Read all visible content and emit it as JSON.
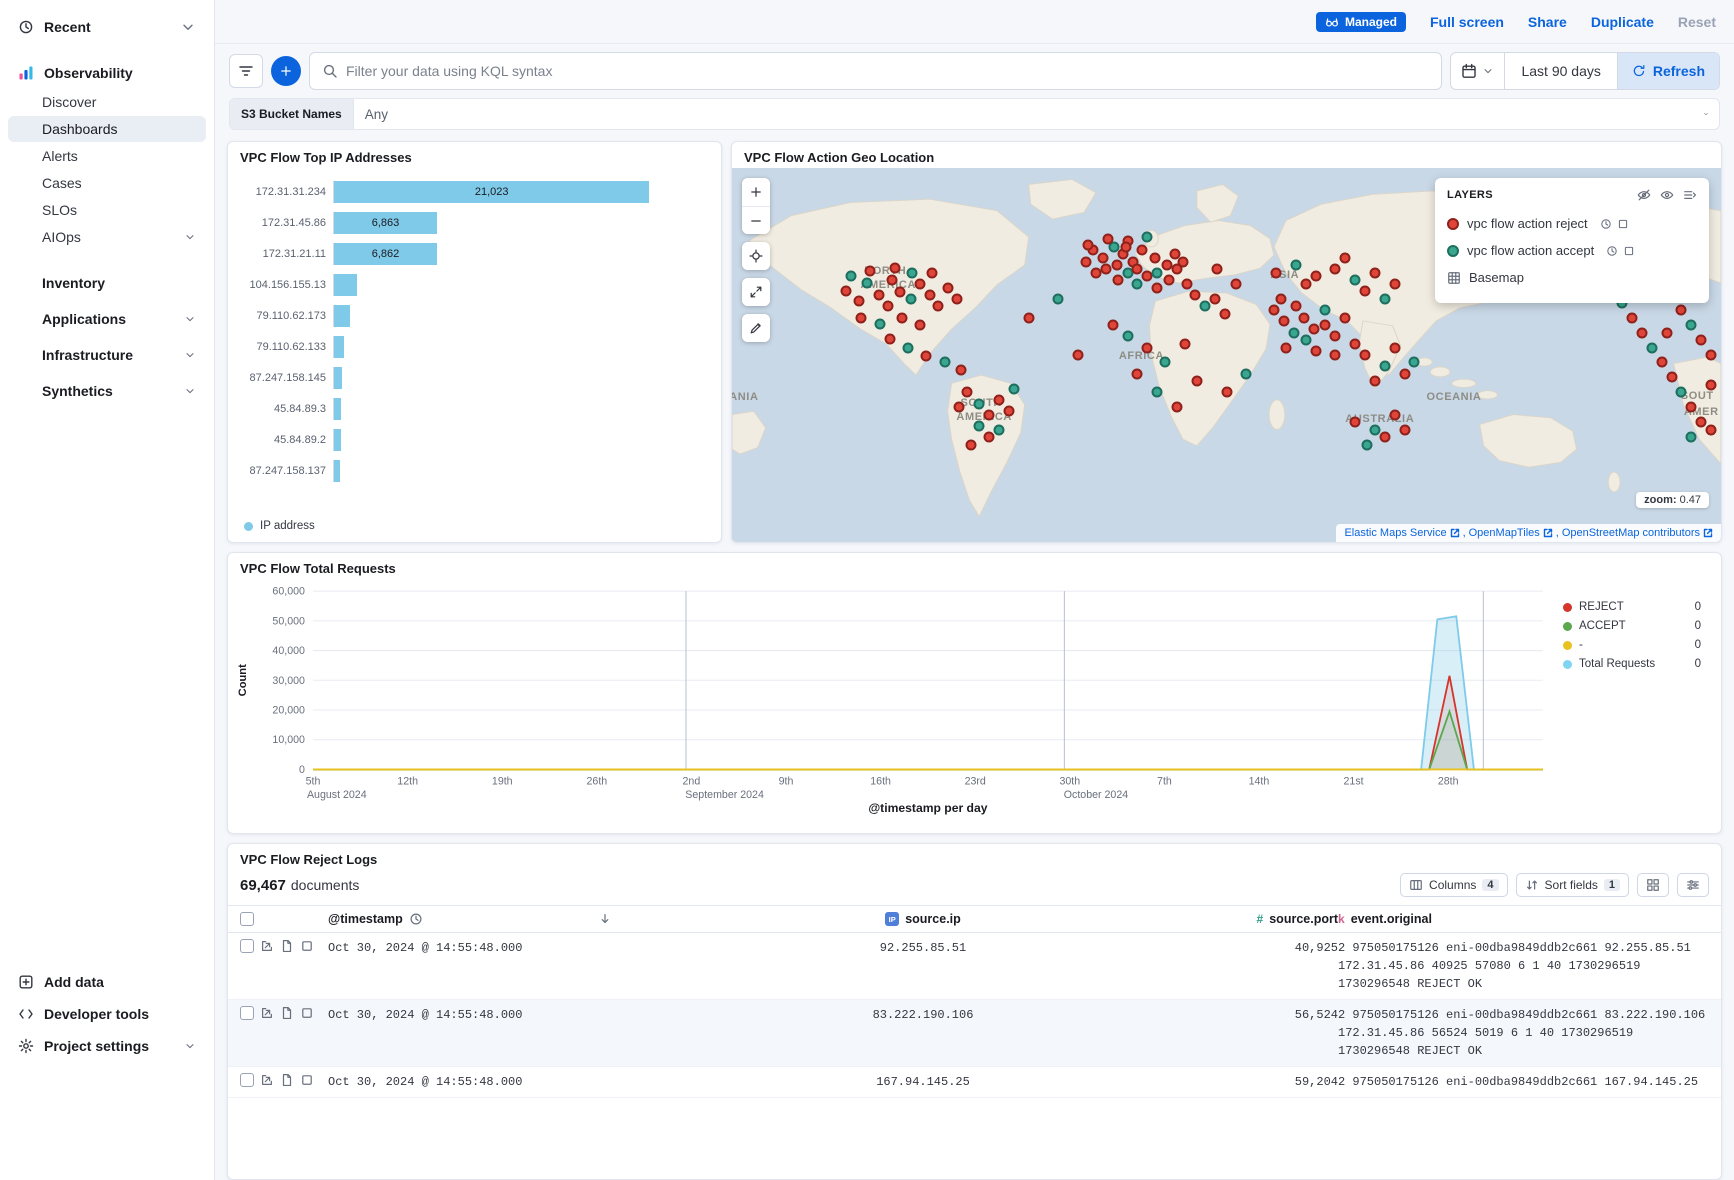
{
  "sidebar": {
    "recent_label": "Recent",
    "solution_label": "Observability",
    "items": [
      {
        "label": "Discover",
        "selected": false,
        "chevron": false
      },
      {
        "label": "Dashboards",
        "selected": true,
        "chevron": false
      },
      {
        "label": "Alerts",
        "selected": false,
        "chevron": false
      },
      {
        "label": "Cases",
        "selected": false,
        "chevron": false
      },
      {
        "label": "SLOs",
        "selected": false,
        "chevron": false
      },
      {
        "label": "AIOps",
        "selected": false,
        "chevron": true
      }
    ],
    "sections": [
      {
        "label": "Inventory",
        "chevron": false
      },
      {
        "label": "Applications",
        "chevron": true
      },
      {
        "label": "Infrastructure",
        "chevron": true
      },
      {
        "label": "Synthetics",
        "chevron": true
      }
    ],
    "footer_items": [
      {
        "label": "Add data",
        "icon": "addbox",
        "chevron": false
      },
      {
        "label": "Developer tools",
        "icon": "code",
        "chevron": false
      },
      {
        "label": "Project settings",
        "icon": "gear",
        "chevron": true
      }
    ]
  },
  "topbar": {
    "managed_label": "Managed",
    "actions": [
      {
        "label": "Full screen",
        "muted": false
      },
      {
        "label": "Share",
        "muted": false
      },
      {
        "label": "Duplicate",
        "muted": false
      },
      {
        "label": "Reset",
        "muted": true
      }
    ]
  },
  "query_bar": {
    "search_placeholder": "Filter your data using KQL syntax",
    "time_range": "Last 90 days",
    "refresh_label": "Refresh"
  },
  "filter_bar": {
    "label": "S3 Bucket Names",
    "value": "Any"
  },
  "logs_toolbar": {
    "doc_count": "69,467",
    "documents_label": "documents",
    "columns_label": "Columns",
    "columns_count": "4",
    "sort_label": "Sort fields",
    "sort_count": "1"
  },
  "colors": {
    "accent_blue": "#0b64dd",
    "bar_blue": "#7fc9e9",
    "reject_red": "#d6352b",
    "accept_green": "#5ba84f",
    "dash_yellow": "#e8c21f",
    "total_light_blue": "#7fcbe9",
    "map_reject_dot": "#e0453a",
    "map_accept_dot": "#3aa68f"
  },
  "chart_data": [
    {
      "id": "top_ips",
      "type": "bar",
      "title": "VPC Flow Top IP Addresses",
      "orientation": "horizontal",
      "series_label": "IP address",
      "bar_color": "#7fc9e9",
      "xlim": [
        0,
        25000
      ],
      "categories": [
        "172.31.31.234",
        "172.31.45.86",
        "172.31.21.11",
        "104.156.155.13",
        "79.110.62.173",
        "79.110.62.133",
        "87.247.158.145",
        "45.84.89.3",
        "45.84.89.2",
        "87.247.158.137"
      ],
      "values": [
        21023,
        6863,
        6862,
        1500,
        1050,
        650,
        520,
        470,
        450,
        430
      ],
      "value_labels": [
        "21,023",
        "6,863",
        "6,862",
        "",
        "",
        "",
        "",
        "",
        "",
        ""
      ]
    },
    {
      "id": "geo",
      "type": "scatter-map",
      "title": "VPC Flow Action Geo Location",
      "layers_title": "LAYERS",
      "layers": [
        {
          "label": "vpc flow action reject",
          "color": "#e0453a",
          "border": "#8f211b",
          "kind": "marker"
        },
        {
          "label": "vpc flow action accept",
          "color": "#3aa68f",
          "border": "#1d6e5e",
          "kind": "marker"
        },
        {
          "label": "Basemap",
          "kind": "basemap"
        }
      ],
      "zoom_label": "zoom:",
      "zoom_value": "0.47",
      "attribution": [
        "Elastic Maps Service",
        "OpenMapTiles",
        "OpenStreetMap contributors"
      ],
      "labels": [
        {
          "t": "NORTH",
          "x": 15.5,
          "y": 27.5
        },
        {
          "t": "AMERICA",
          "x": 15.8,
          "y": 31.2
        },
        {
          "t": "SOUTH",
          "x": 25.2,
          "y": 62.8
        },
        {
          "t": "AMERICA",
          "x": 25.5,
          "y": 66.6
        },
        {
          "t": "AFRICA",
          "x": 41.4,
          "y": 50.4
        },
        {
          "t": "ASIA",
          "x": 55.9,
          "y": 28.6
        },
        {
          "t": "OCEANIA",
          "x": 73.0,
          "y": 61.3
        },
        {
          "t": "AUSTRALIA",
          "x": 65.5,
          "y": 67.1
        },
        {
          "t": "ANIA",
          "x": 1.2,
          "y": 61.3
        },
        {
          "t": "SOUT",
          "x": 97.6,
          "y": 61.0
        },
        {
          "t": "AMER",
          "x": 98.0,
          "y": 65.2
        }
      ],
      "dots": [
        [
          11.5,
          33,
          0
        ],
        [
          12.8,
          35.5,
          0
        ],
        [
          13.6,
          30.8,
          1
        ],
        [
          14.9,
          34,
          0
        ],
        [
          15.8,
          37,
          0
        ],
        [
          16.2,
          30,
          0
        ],
        [
          17,
          33.2,
          0
        ],
        [
          18.1,
          35,
          1
        ],
        [
          19,
          31,
          0
        ],
        [
          20,
          34,
          0
        ],
        [
          20.8,
          37,
          0
        ],
        [
          13,
          40,
          0
        ],
        [
          15,
          41.8,
          1
        ],
        [
          17.2,
          40.2,
          0
        ],
        [
          19,
          42,
          0
        ],
        [
          12,
          29,
          1
        ],
        [
          21.8,
          32,
          0
        ],
        [
          22.8,
          35,
          0
        ],
        [
          20.2,
          28.2,
          0
        ],
        [
          18.2,
          28,
          1
        ],
        [
          14,
          27.5,
          0
        ],
        [
          16.5,
          26.8,
          0
        ],
        [
          16,
          45.8,
          0
        ],
        [
          17.8,
          48,
          1
        ],
        [
          19.6,
          50.2,
          0
        ],
        [
          21.5,
          52,
          1
        ],
        [
          23.2,
          54,
          0
        ],
        [
          23.8,
          60,
          0
        ],
        [
          25,
          63,
          1
        ],
        [
          26,
          66,
          0
        ],
        [
          27,
          62,
          0
        ],
        [
          25,
          69,
          1
        ],
        [
          26,
          72,
          0
        ],
        [
          28,
          65,
          0
        ],
        [
          23,
          64,
          0
        ],
        [
          27,
          70,
          1
        ],
        [
          24.2,
          74,
          0
        ],
        [
          28.5,
          59,
          1
        ],
        [
          36.5,
          22,
          0
        ],
        [
          37.5,
          24,
          0
        ],
        [
          38.6,
          21,
          1
        ],
        [
          39.5,
          23,
          0
        ],
        [
          40.5,
          25,
          0
        ],
        [
          41.5,
          22,
          0
        ],
        [
          37.8,
          27,
          0
        ],
        [
          38.9,
          26,
          0
        ],
        [
          40,
          28,
          1
        ],
        [
          41,
          27,
          0
        ],
        [
          42,
          29,
          0
        ],
        [
          42.8,
          24,
          0
        ],
        [
          43,
          28,
          1
        ],
        [
          44,
          26,
          0
        ],
        [
          35.8,
          25,
          0
        ],
        [
          36.8,
          28,
          0
        ],
        [
          44.2,
          30,
          0
        ],
        [
          45,
          27,
          0
        ],
        [
          39,
          30,
          0
        ],
        [
          41,
          31,
          1
        ],
        [
          43,
          32,
          0
        ],
        [
          40,
          19.5,
          0
        ],
        [
          42,
          18.5,
          1
        ],
        [
          38,
          19,
          0
        ],
        [
          44.8,
          23,
          0
        ],
        [
          36,
          20.5,
          0
        ],
        [
          45.6,
          25,
          0
        ],
        [
          39.8,
          21.2,
          0
        ],
        [
          46.8,
          34,
          0
        ],
        [
          47.8,
          37,
          1
        ],
        [
          48.8,
          35,
          0
        ],
        [
          49.8,
          39,
          0
        ],
        [
          46,
          31,
          0
        ],
        [
          40,
          45,
          1
        ],
        [
          42,
          48,
          0
        ],
        [
          43.8,
          52,
          1
        ],
        [
          41,
          55,
          0
        ],
        [
          45.8,
          47,
          0
        ],
        [
          43,
          60,
          1
        ],
        [
          45,
          64,
          0
        ],
        [
          47,
          57,
          0
        ],
        [
          38.5,
          42,
          0
        ],
        [
          54.8,
          38,
          0
        ],
        [
          55.8,
          41,
          0
        ],
        [
          56.8,
          44,
          1
        ],
        [
          57.8,
          40,
          0
        ],
        [
          58.8,
          43,
          0
        ],
        [
          57,
          37,
          0
        ],
        [
          58,
          46,
          1
        ],
        [
          59,
          49,
          0
        ],
        [
          60,
          42,
          0
        ],
        [
          61,
          45,
          0
        ],
        [
          56,
          48,
          0
        ],
        [
          60,
          38,
          1
        ],
        [
          62,
          40,
          0
        ],
        [
          61,
          50,
          0
        ],
        [
          63,
          47,
          0
        ],
        [
          55.5,
          35,
          0
        ],
        [
          55,
          28,
          0
        ],
        [
          57,
          26,
          1
        ],
        [
          59,
          29,
          0
        ],
        [
          61,
          27,
          0
        ],
        [
          63,
          30,
          1
        ],
        [
          62,
          24,
          0
        ],
        [
          58,
          31,
          0
        ],
        [
          64,
          33,
          0
        ],
        [
          65,
          28,
          0
        ],
        [
          66,
          35,
          1
        ],
        [
          67,
          31,
          0
        ],
        [
          64,
          50,
          0
        ],
        [
          66,
          53,
          1
        ],
        [
          68,
          55,
          0
        ],
        [
          65,
          57,
          0
        ],
        [
          67,
          48,
          0
        ],
        [
          69,
          52,
          1
        ],
        [
          63,
          68,
          0
        ],
        [
          65,
          70,
          1
        ],
        [
          67,
          66,
          0
        ],
        [
          66,
          72,
          0
        ],
        [
          64.2,
          74,
          1
        ],
        [
          68,
          70,
          0
        ],
        [
          89,
          32,
          0
        ],
        [
          90,
          36,
          1
        ],
        [
          91,
          40,
          0
        ],
        [
          92,
          44,
          0
        ],
        [
          93,
          48,
          1
        ],
        [
          94,
          52,
          0
        ],
        [
          95,
          56,
          0
        ],
        [
          96,
          60,
          1
        ],
        [
          97,
          64,
          0
        ],
        [
          98,
          68,
          0
        ],
        [
          96,
          38,
          0
        ],
        [
          97,
          42,
          1
        ],
        [
          98,
          46,
          0
        ],
        [
          99,
          50,
          0
        ],
        [
          95,
          30,
          1
        ],
        [
          98,
          34,
          0
        ],
        [
          99,
          58,
          0
        ],
        [
          97,
          72,
          1
        ],
        [
          99,
          70,
          0
        ],
        [
          93.5,
          33,
          0
        ],
        [
          94.5,
          44,
          0
        ],
        [
          30,
          40,
          0
        ],
        [
          33,
          35,
          1
        ],
        [
          50,
          60,
          0
        ],
        [
          52,
          55,
          1
        ],
        [
          35,
          50,
          0
        ],
        [
          49,
          27,
          0
        ],
        [
          51,
          31,
          0
        ]
      ]
    },
    {
      "id": "requests",
      "type": "area",
      "title": "VPC Flow Total Requests",
      "xlabel": "@timestamp per day",
      "ylabel": "Count",
      "ylim": [
        0,
        60000
      ],
      "ytick_step": 10000,
      "x_domain": [
        0,
        91
      ],
      "xticks": [
        {
          "d": 0,
          "l": "5th",
          "m": "August 2024"
        },
        {
          "d": 7,
          "l": "12th"
        },
        {
          "d": 14,
          "l": "19th"
        },
        {
          "d": 21,
          "l": "26th"
        },
        {
          "d": 28,
          "l": "2nd",
          "m": "September 2024"
        },
        {
          "d": 35,
          "l": "9th"
        },
        {
          "d": 42,
          "l": "16th"
        },
        {
          "d": 49,
          "l": "23rd"
        },
        {
          "d": 56,
          "l": "30th",
          "m": "October 2024"
        },
        {
          "d": 63,
          "l": "7th"
        },
        {
          "d": 70,
          "l": "14th"
        },
        {
          "d": 77,
          "l": "21st"
        },
        {
          "d": 84,
          "l": "28th"
        }
      ],
      "vlines": [
        27.6,
        55.6,
        86.6
      ],
      "series": [
        {
          "name": "Total Requests",
          "color": "#7fcbe9",
          "fill": 0.3,
          "points": [
            [
              0,
              0
            ],
            [
              82,
              0
            ],
            [
              83.2,
              50500
            ],
            [
              84.6,
              51500
            ],
            [
              85.9,
              0
            ],
            [
              91,
              0
            ]
          ]
        },
        {
          "name": "REJECT",
          "color": "#d6352b",
          "fill": 0.1,
          "points": [
            [
              0,
              0
            ],
            [
              82.6,
              0
            ],
            [
              84.1,
              31500
            ],
            [
              85.4,
              0
            ],
            [
              91,
              0
            ]
          ]
        },
        {
          "name": "ACCEPT",
          "color": "#5ba84f",
          "fill": 0.1,
          "points": [
            [
              0,
              0
            ],
            [
              82.6,
              0
            ],
            [
              84.1,
              19500
            ],
            [
              85.4,
              0
            ],
            [
              91,
              0
            ]
          ]
        },
        {
          "name": "-",
          "color": "#e8c21f",
          "fill": 0,
          "points": [
            [
              0,
              0
            ],
            [
              91,
              0
            ]
          ]
        }
      ],
      "legend": [
        {
          "label": "REJECT",
          "value": "0",
          "color": "#d6352b"
        },
        {
          "label": "ACCEPT",
          "value": "0",
          "color": "#5ba84f"
        },
        {
          "label": "-",
          "value": "0",
          "color": "#e8c21f"
        },
        {
          "label": "Total Requests",
          "value": "0",
          "color": "#7fd4f0"
        }
      ]
    },
    {
      "id": "reject_logs",
      "type": "table",
      "title": "VPC Flow Reject Logs",
      "columns": [
        {
          "label": "@timestamp",
          "icon": "clock",
          "sorted": "desc"
        },
        {
          "label": "source.ip",
          "icon": "ip"
        },
        {
          "label": "source.port",
          "icon": "number"
        },
        {
          "label": "event.original",
          "icon": "keyword"
        }
      ],
      "rows": [
        {
          "timestamp": "Oct 30, 2024 @ 14:55:48.000",
          "source_ip": "92.255.85.51",
          "source_port": "40,925",
          "event_original": "2 975050175126 eni-00dba9849ddb2c661 92.255.85.51 172.31.45.86 40925 57080 6 1 40 1730296519 1730296548 REJECT OK"
        },
        {
          "timestamp": "Oct 30, 2024 @ 14:55:48.000",
          "source_ip": "83.222.190.106",
          "source_port": "56,524",
          "event_original": "2 975050175126 eni-00dba9849ddb2c661 83.222.190.106 172.31.45.86 56524 5019 6 1 40 1730296519 1730296548 REJECT OK"
        },
        {
          "timestamp": "Oct 30, 2024 @ 14:55:48.000",
          "source_ip": "167.94.145.25",
          "source_port": "59,204",
          "event_original": "2 975050175126 eni-00dba9849ddb2c661 167.94.145.25"
        }
      ]
    }
  ]
}
